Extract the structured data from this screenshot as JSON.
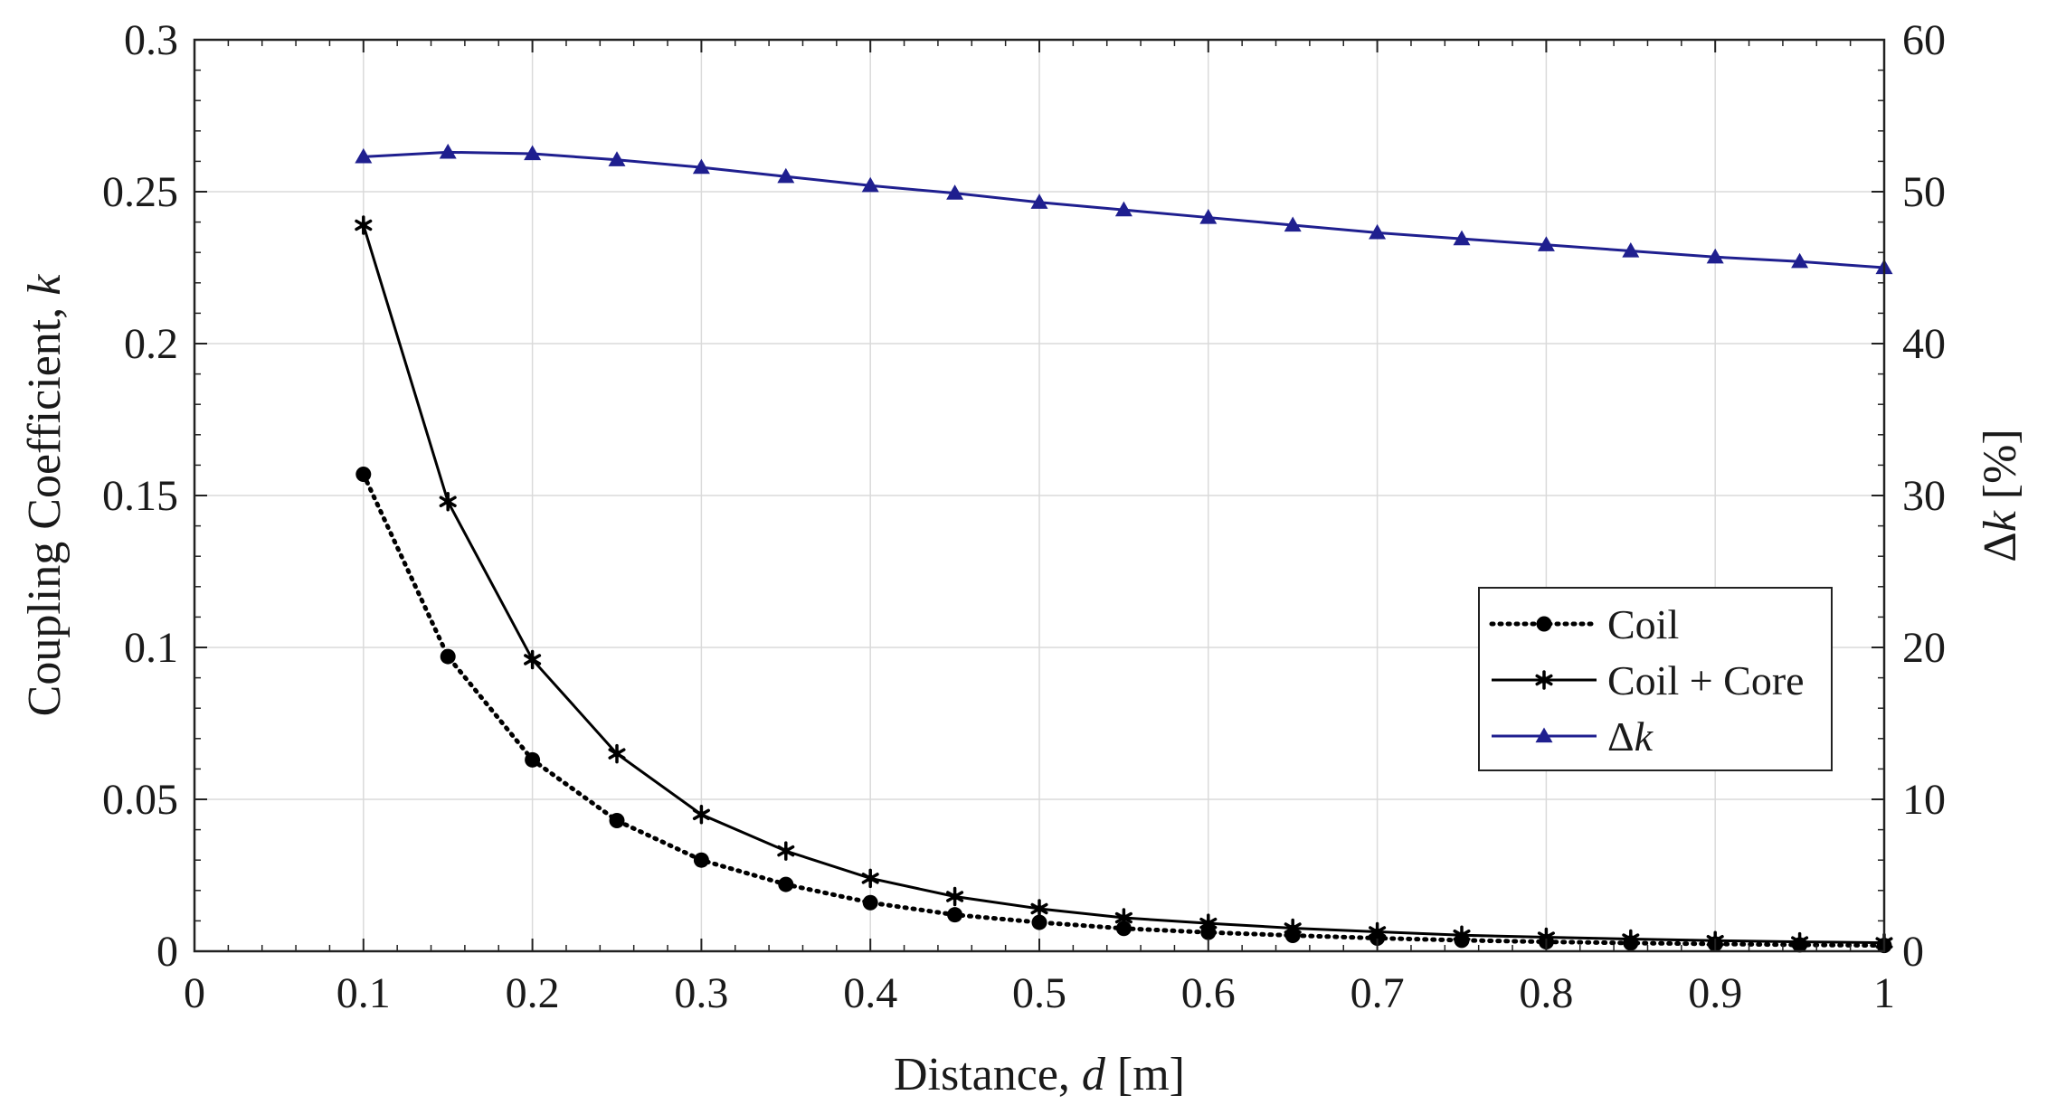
{
  "chart_data": {
    "type": "line",
    "title": "",
    "xlabel": {
      "prefix": "Distance, ",
      "var": "d",
      "suffix": " [m]"
    },
    "ylabel_left": {
      "prefix": "Coupling Coefficient, ",
      "var": "k"
    },
    "ylabel_right": {
      "prefix": "Δ",
      "var": "k",
      "suffix": " [%]"
    },
    "xlim": [
      0,
      1
    ],
    "ylim_left": [
      0,
      0.3
    ],
    "ylim_right": [
      0,
      60
    ],
    "x_ticks": [
      "0",
      "0.1",
      "0.2",
      "0.3",
      "0.4",
      "0.5",
      "0.6",
      "0.7",
      "0.8",
      "0.9",
      "1"
    ],
    "y_left_ticks": [
      "0",
      "0.05",
      "0.1",
      "0.15",
      "0.2",
      "0.25",
      "0.3"
    ],
    "y_right_ticks": [
      "0",
      "10",
      "20",
      "30",
      "40",
      "50",
      "60"
    ],
    "grid": true,
    "legend_position": "center-right",
    "x": [
      0.1,
      0.15,
      0.2,
      0.25,
      0.3,
      0.35,
      0.4,
      0.45,
      0.5,
      0.55,
      0.6,
      0.65,
      0.7,
      0.75,
      0.8,
      0.85,
      0.9,
      0.95,
      1.0
    ],
    "series": [
      {
        "name": "Coil",
        "axis": "left",
        "color": "#000000",
        "line_style": "dotted",
        "marker": "circle",
        "values": [
          0.157,
          0.097,
          0.063,
          0.043,
          0.03,
          0.022,
          0.016,
          0.012,
          0.0095,
          0.0075,
          0.0062,
          0.0052,
          0.0043,
          0.0036,
          0.0031,
          0.0027,
          0.0024,
          0.0021,
          0.0019
        ]
      },
      {
        "name": "Coil + Core",
        "axis": "left",
        "color": "#000000",
        "line_style": "solid",
        "marker": "asterisk",
        "values": [
          0.239,
          0.148,
          0.096,
          0.065,
          0.045,
          0.033,
          0.024,
          0.018,
          0.014,
          0.011,
          0.0092,
          0.0076,
          0.0064,
          0.0053,
          0.0046,
          0.004,
          0.0035,
          0.0031,
          0.0028
        ]
      },
      {
        "name": "Δk",
        "legend_prefix": "Δ",
        "legend_var": "k",
        "axis": "right",
        "color": "#1f1f8f",
        "line_style": "solid",
        "marker": "triangle",
        "values": [
          52.3,
          52.6,
          52.5,
          52.1,
          51.6,
          51.0,
          50.4,
          49.9,
          49.3,
          48.8,
          48.3,
          47.8,
          47.3,
          46.9,
          46.5,
          46.1,
          45.7,
          45.4,
          45.0
        ]
      }
    ]
  }
}
